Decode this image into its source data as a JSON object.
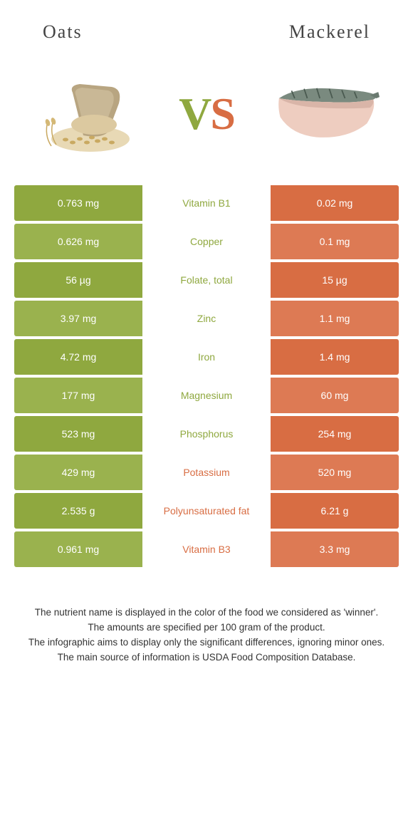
{
  "header": {
    "left_title": "Oats",
    "right_title": "Mackerel"
  },
  "vs": {
    "v": "V",
    "s": "S"
  },
  "colors": {
    "oats": "#8fa83f",
    "oats_alt": "#9ab24e",
    "mackerel": "#d86d43",
    "mackerel_alt": "#dd7a54",
    "row_bg": "#ffffff",
    "text_white": "#ffffff"
  },
  "table": {
    "rows": [
      {
        "nutrient": "Vitamin B1",
        "left": "0.763 mg",
        "right": "0.02 mg",
        "winner": "oats"
      },
      {
        "nutrient": "Copper",
        "left": "0.626 mg",
        "right": "0.1 mg",
        "winner": "oats"
      },
      {
        "nutrient": "Folate, total",
        "left": "56 µg",
        "right": "15 µg",
        "winner": "oats"
      },
      {
        "nutrient": "Zinc",
        "left": "3.97 mg",
        "right": "1.1 mg",
        "winner": "oats"
      },
      {
        "nutrient": "Iron",
        "left": "4.72 mg",
        "right": "1.4 mg",
        "winner": "oats"
      },
      {
        "nutrient": "Magnesium",
        "left": "177 mg",
        "right": "60 mg",
        "winner": "oats"
      },
      {
        "nutrient": "Phosphorus",
        "left": "523 mg",
        "right": "254 mg",
        "winner": "oats"
      },
      {
        "nutrient": "Potassium",
        "left": "429 mg",
        "right": "520 mg",
        "winner": "mackerel"
      },
      {
        "nutrient": "Polyunsaturated fat",
        "left": "2.535 g",
        "right": "6.21 g",
        "winner": "mackerel"
      },
      {
        "nutrient": "Vitamin B3",
        "left": "0.961 mg",
        "right": "3.3 mg",
        "winner": "mackerel"
      }
    ]
  },
  "footnote": {
    "line1": "The nutrient name is displayed in the color of the food we considered as 'winner'.",
    "line2": "The amounts are specified per 100 gram of the product.",
    "line3": "The infographic aims to display only the significant differences, ignoring minor ones.",
    "line4": "The main source of information is USDA Food Composition Database."
  }
}
